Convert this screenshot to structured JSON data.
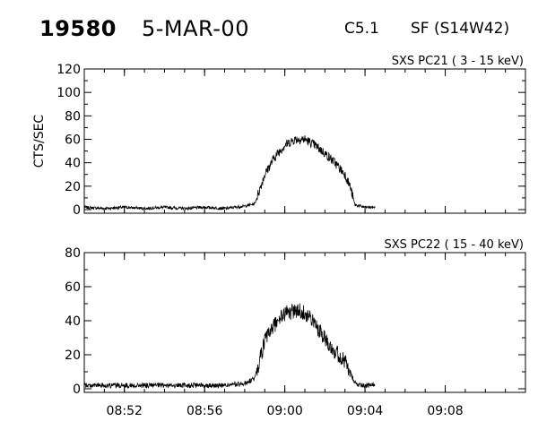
{
  "header": {
    "event_id": "19580",
    "date": "5-MAR-00",
    "flare_class": "C5.1",
    "location": "SF (S14W42)"
  },
  "chart_data": [
    {
      "type": "line",
      "panel_label": "SXS PC21  (  3 - 15 keV)",
      "ylabel": "CTS/SEC",
      "xlabel": "",
      "ylim": [
        0,
        120
      ],
      "yticks": [
        0,
        20,
        40,
        60,
        80,
        100,
        120
      ],
      "xlim": [
        "08:50",
        "09:12"
      ],
      "xticks": [
        "08:52",
        "08:56",
        "09:00",
        "09:04",
        "09:08"
      ],
      "show_xtick_labels": false,
      "grid": false,
      "series": [
        {
          "x": [
            "08:50",
            "08:51",
            "08:52",
            "08:53",
            "08:54",
            "08:55",
            "08:56",
            "08:57",
            "08:58",
            "08:58:30",
            "08:59",
            "08:59:30",
            "09:00",
            "09:00:30",
            "09:01",
            "09:01:30",
            "09:02",
            "09:02:30",
            "09:03",
            "09:03:15",
            "09:03:30",
            "09:04",
            "09:04:30"
          ],
          "values": [
            2,
            1,
            2,
            1,
            2,
            1,
            2,
            1,
            3,
            5,
            30,
            45,
            55,
            60,
            60,
            55,
            48,
            40,
            30,
            20,
            4,
            2,
            2
          ],
          "noise_amplitude": 5
        }
      ]
    },
    {
      "type": "line",
      "panel_label": "SXS PC22  ( 15 - 40 keV)",
      "ylabel": "",
      "xlabel": "",
      "ylim": [
        0,
        80
      ],
      "yticks": [
        0,
        20,
        40,
        60,
        80
      ],
      "xlim": [
        "08:50",
        "09:12"
      ],
      "xticks": [
        "08:52",
        "08:56",
        "09:00",
        "09:04",
        "09:08"
      ],
      "show_xtick_labels": true,
      "grid": false,
      "series": [
        {
          "x": [
            "08:50",
            "08:51",
            "08:52",
            "08:53",
            "08:54",
            "08:55",
            "08:56",
            "08:57",
            "08:58",
            "08:58:30",
            "08:59",
            "08:59:30",
            "09:00",
            "09:00:30",
            "09:01",
            "09:01:30",
            "09:02",
            "09:02:30",
            "09:03",
            "09:03:15",
            "09:03:30",
            "09:04",
            "09:04:30"
          ],
          "values": [
            2,
            2,
            2,
            2,
            2,
            2,
            2,
            2,
            3,
            6,
            28,
            38,
            44,
            46,
            45,
            38,
            30,
            22,
            16,
            10,
            3,
            2,
            2
          ],
          "noise_amplitude": 6
        }
      ]
    }
  ]
}
